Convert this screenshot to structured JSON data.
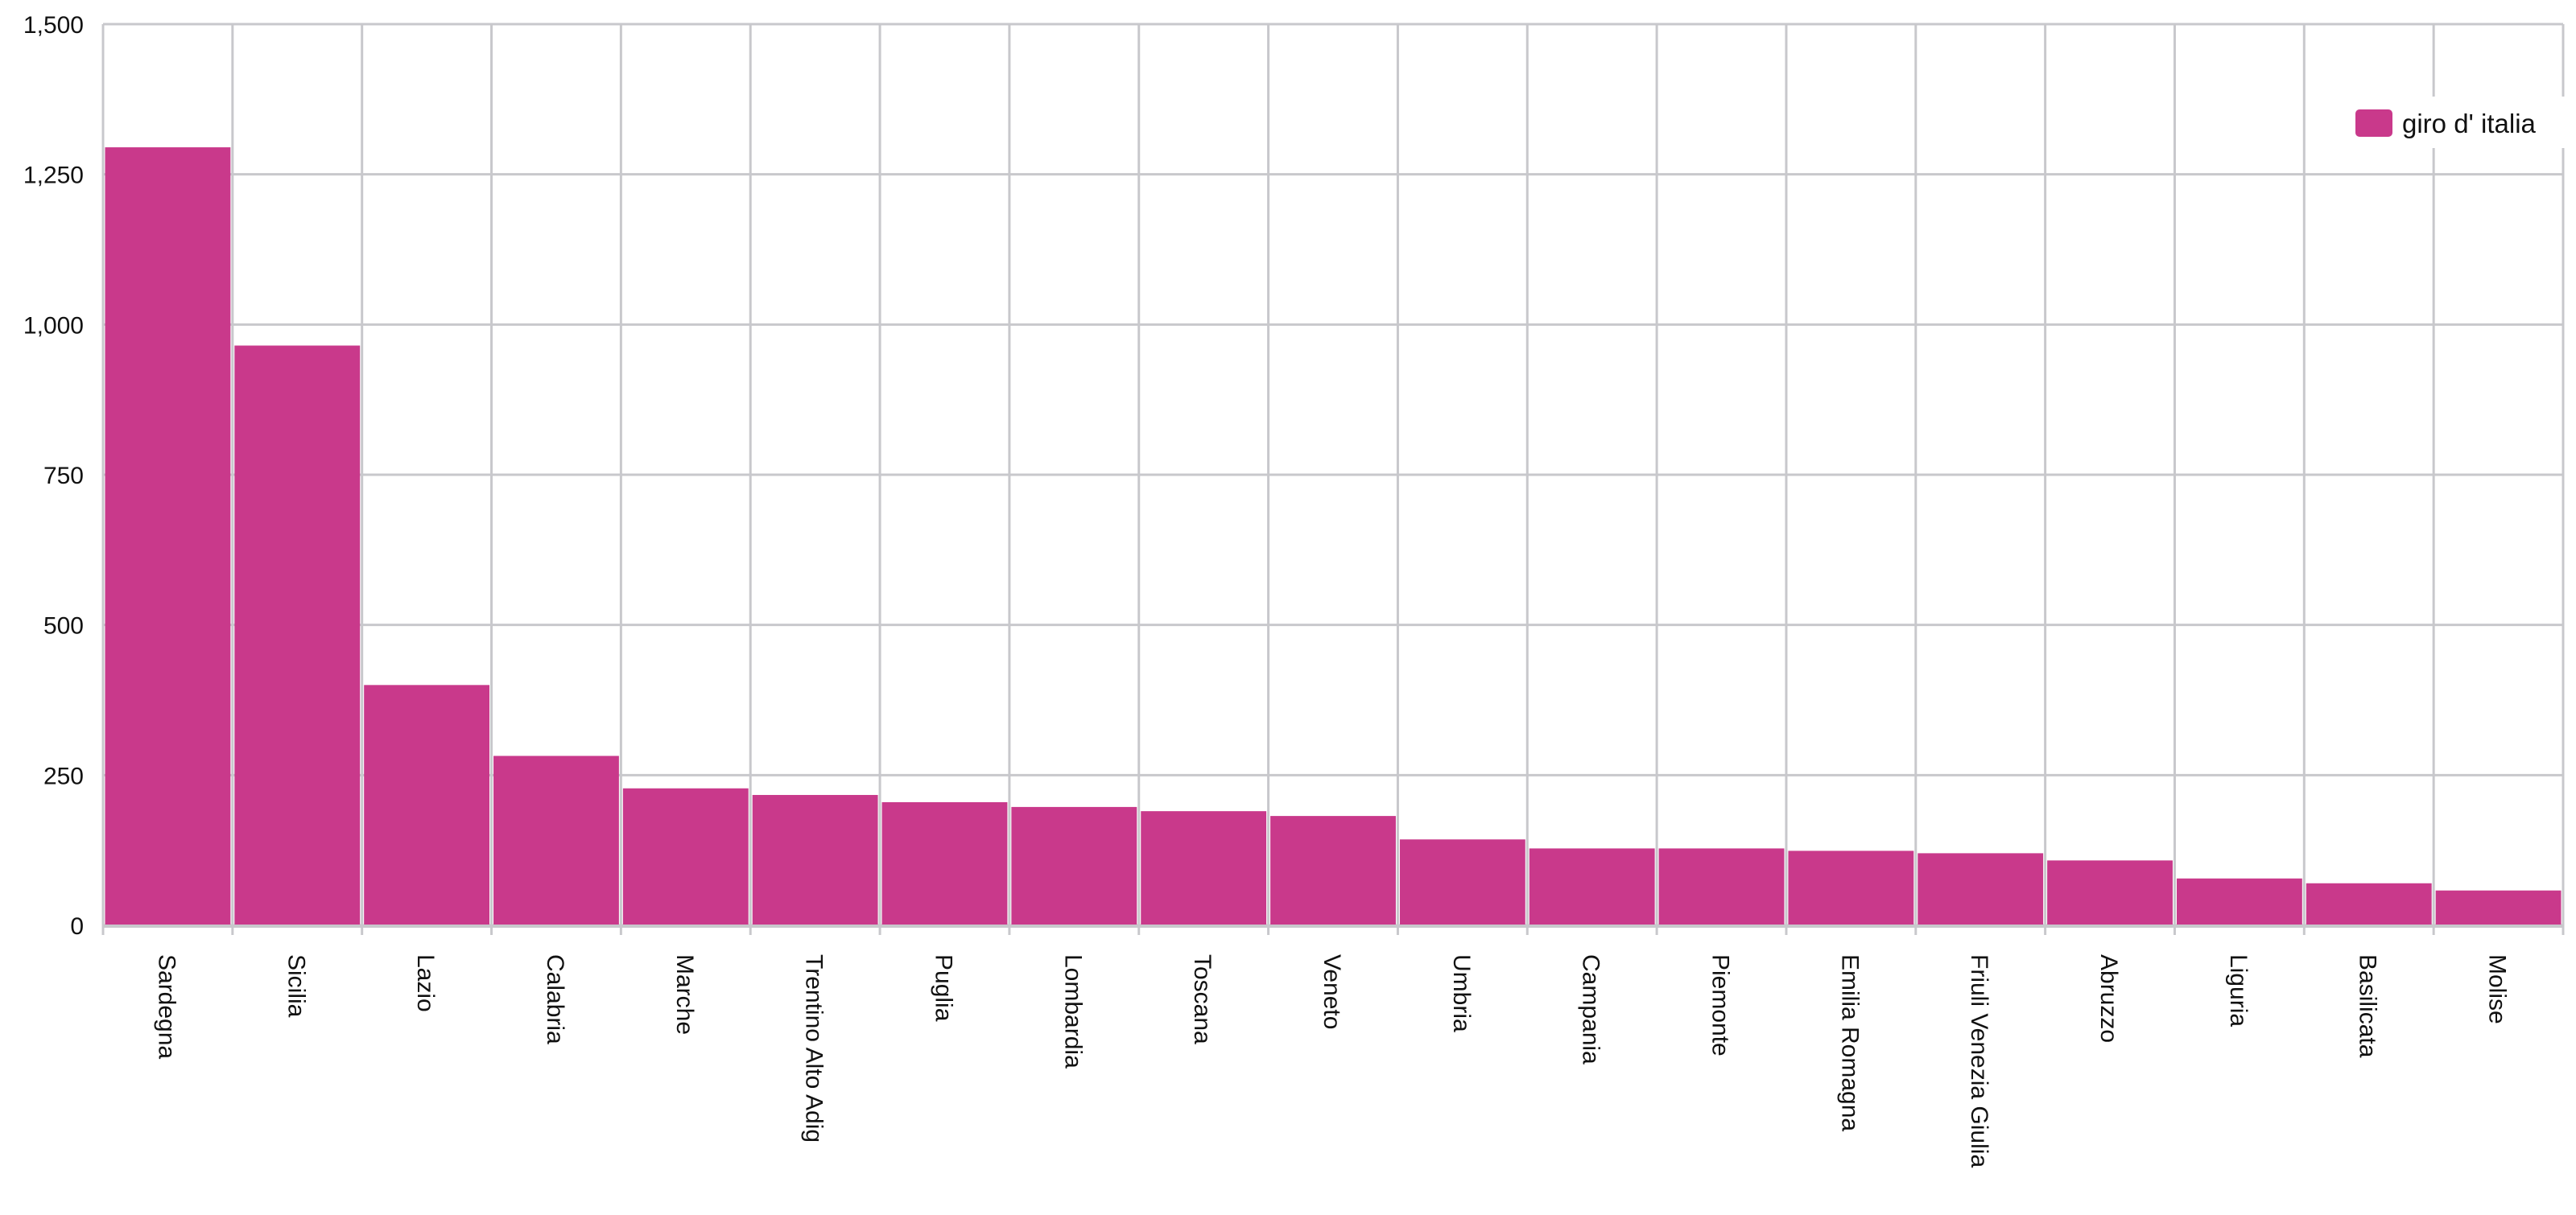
{
  "chart_data": {
    "type": "bar",
    "title": "",
    "xlabel": "",
    "ylabel": "",
    "categories": [
      "Sardegna",
      "Sicilia",
      "Lazio",
      "Calabria",
      "Marche",
      "Trentino Alto Adig",
      "Puglia",
      "Lombardia",
      "Toscana",
      "Veneto",
      "Umbria",
      "Campania",
      "Piemonte",
      "Emilia Romagna",
      "Friuli Venezia Giulia",
      "Abruzzo",
      "Liguria",
      "Basilicata",
      "Molise"
    ],
    "series": [
      {
        "name": "giro d' italia",
        "color": "#c9398b",
        "values": [
          1295,
          965,
          400,
          282,
          228,
          217,
          205,
          197,
          190,
          182,
          143,
          128,
          128,
          124,
          120,
          108,
          78,
          70,
          58
        ]
      }
    ],
    "ylim": [
      0,
      1500
    ],
    "yticks": [
      0,
      250,
      500,
      750,
      1000,
      1250,
      1500
    ],
    "ytick_labels": [
      "0",
      "250",
      "500",
      "750",
      "1,000",
      "1,250",
      "1,500"
    ],
    "grid": true,
    "legend_position": "top-right",
    "colors": {
      "bar": "#c9398b",
      "grid": "#c8c8cc",
      "text": "#111111"
    }
  }
}
